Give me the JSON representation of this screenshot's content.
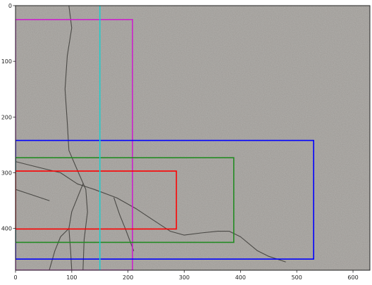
{
  "chart_data": {
    "type": "image_with_box_annotations",
    "image": {
      "content": "grey textured concrete surface with dark branching cracks",
      "background_color": "#9c9995",
      "crack_color": "#3a3835"
    },
    "x_axis": {
      "range": [
        0,
        630
      ],
      "ticks": [
        0,
        100,
        200,
        300,
        400,
        500,
        600
      ]
    },
    "y_axis": {
      "range": [
        0,
        475
      ],
      "inverted": true,
      "ticks": [
        0,
        100,
        200,
        300,
        400
      ]
    },
    "grid": false,
    "legend": "none",
    "rectangles": [
      {
        "color": "#cc22cc",
        "x0": 0,
        "y0": 25,
        "x1": 208,
        "y1": 475
      },
      {
        "color": "#0000ff",
        "x0": 0,
        "y0": 242,
        "x1": 530,
        "y1": 455
      },
      {
        "color": "#228b22",
        "x0": 0,
        "y0": 273,
        "x1": 388,
        "y1": 425
      },
      {
        "color": "#ff0000",
        "x0": 0,
        "y0": 297,
        "x1": 286,
        "y1": 401
      }
    ],
    "vertical_lines": [
      {
        "color": "#22cccc",
        "x": 150
      }
    ],
    "cracks": [
      [
        [
          95,
          0
        ],
        [
          100,
          40
        ],
        [
          92,
          90
        ],
        [
          88,
          150
        ],
        [
          92,
          210
        ],
        [
          95,
          260
        ],
        [
          112,
          300
        ],
        [
          125,
          330
        ],
        [
          128,
          370
        ],
        [
          122,
          420
        ],
        [
          120,
          475
        ]
      ],
      [
        [
          0,
          280
        ],
        [
          40,
          290
        ],
        [
          80,
          300
        ],
        [
          110,
          320
        ],
        [
          140,
          330
        ],
        [
          180,
          345
        ],
        [
          215,
          365
        ],
        [
          245,
          385
        ],
        [
          275,
          405
        ],
        [
          300,
          412
        ],
        [
          330,
          408
        ],
        [
          360,
          405
        ],
        [
          380,
          405
        ],
        [
          400,
          415
        ],
        [
          430,
          440
        ],
        [
          450,
          450
        ],
        [
          480,
          460
        ]
      ],
      [
        [
          120,
          320
        ],
        [
          110,
          345
        ],
        [
          100,
          370
        ],
        [
          95,
          400
        ],
        [
          98,
          440
        ],
        [
          100,
          475
        ]
      ],
      [
        [
          175,
          345
        ],
        [
          185,
          375
        ],
        [
          195,
          400
        ],
        [
          210,
          440
        ]
      ],
      [
        [
          60,
          475
        ],
        [
          70,
          440
        ],
        [
          80,
          415
        ],
        [
          95,
          400
        ]
      ],
      [
        [
          0,
          330
        ],
        [
          30,
          340
        ],
        [
          60,
          350
        ]
      ]
    ]
  }
}
